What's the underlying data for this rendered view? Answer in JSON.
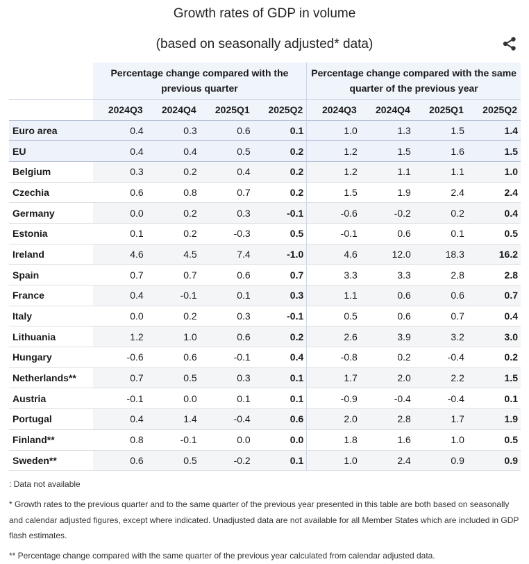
{
  "title": "Growth rates of GDP in volume",
  "subtitle": "(based on seasonally adjusted* data)",
  "icons": {
    "share": "share-icon"
  },
  "table": {
    "group_headers": [
      "Percentage change compared with the previous quarter",
      "Percentage change compared with the same quarter of the previous year"
    ],
    "quarters": [
      "2024Q3",
      "2024Q4",
      "2025Q1",
      "2025Q2",
      "2024Q3",
      "2024Q4",
      "2025Q1",
      "2025Q2"
    ],
    "rows": [
      {
        "country": "Euro area",
        "values": [
          "0.4",
          "0.3",
          "0.6",
          "0.1",
          "1.0",
          "1.3",
          "1.5",
          "1.4"
        ]
      },
      {
        "country": "EU",
        "values": [
          "0.4",
          "0.4",
          "0.5",
          "0.2",
          "1.2",
          "1.5",
          "1.6",
          "1.5"
        ]
      },
      {
        "country": "Belgium",
        "values": [
          "0.3",
          "0.2",
          "0.4",
          "0.2",
          "1.2",
          "1.1",
          "1.1",
          "1.0"
        ]
      },
      {
        "country": "Czechia",
        "values": [
          "0.6",
          "0.8",
          "0.7",
          "0.2",
          "1.5",
          "1.9",
          "2.4",
          "2.4"
        ]
      },
      {
        "country": "Germany",
        "values": [
          "0.0",
          "0.2",
          "0.3",
          "-0.1",
          "-0.6",
          "-0.2",
          "0.2",
          "0.4"
        ]
      },
      {
        "country": "Estonia",
        "values": [
          "0.1",
          "0.2",
          "-0.3",
          "0.5",
          "-0.1",
          "0.6",
          "0.1",
          "0.5"
        ]
      },
      {
        "country": "Ireland",
        "values": [
          "4.6",
          "4.5",
          "7.4",
          "-1.0",
          "4.6",
          "12.0",
          "18.3",
          "16.2"
        ]
      },
      {
        "country": "Spain",
        "values": [
          "0.7",
          "0.7",
          "0.6",
          "0.7",
          "3.3",
          "3.3",
          "2.8",
          "2.8"
        ]
      },
      {
        "country": "France",
        "values": [
          "0.4",
          "-0.1",
          "0.1",
          "0.3",
          "1.1",
          "0.6",
          "0.6",
          "0.7"
        ]
      },
      {
        "country": "Italy",
        "values": [
          "0.0",
          "0.2",
          "0.3",
          "-0.1",
          "0.5",
          "0.6",
          "0.7",
          "0.4"
        ]
      },
      {
        "country": "Lithuania",
        "values": [
          "1.2",
          "1.0",
          "0.6",
          "0.2",
          "2.6",
          "3.9",
          "3.2",
          "3.0"
        ]
      },
      {
        "country": "Hungary",
        "values": [
          "-0.6",
          "0.6",
          "-0.1",
          "0.4",
          "-0.8",
          "0.2",
          "-0.4",
          "0.2"
        ]
      },
      {
        "country": "Netherlands**",
        "values": [
          "0.7",
          "0.5",
          "0.3",
          "0.1",
          "1.7",
          "2.0",
          "2.2",
          "1.5"
        ]
      },
      {
        "country": "Austria",
        "values": [
          "-0.1",
          "0.0",
          "0.1",
          "0.1",
          "-0.9",
          "-0.4",
          "-0.4",
          "0.1"
        ]
      },
      {
        "country": "Portugal",
        "values": [
          "0.4",
          "1.4",
          "-0.4",
          "0.6",
          "2.0",
          "2.8",
          "1.7",
          "1.9"
        ]
      },
      {
        "country": "Finland**",
        "values": [
          "0.8",
          "-0.1",
          "0.0",
          "0.0",
          "1.8",
          "1.6",
          "1.0",
          "0.5"
        ]
      },
      {
        "country": "Sweden**",
        "values": [
          "0.6",
          "0.5",
          "-0.2",
          "0.1",
          "1.0",
          "2.4",
          "0.9",
          "0.9"
        ]
      }
    ]
  },
  "notes": {
    "not_available": ": Data not available",
    "footnote1": "* Growth rates to the previous quarter and to the same quarter of the previous year presented in this table are both based on seasonally and calendar adjusted figures, except where indicated. Unadjusted data are not available for all Member States which are included in GDP flash estimates.",
    "footnote2": "** Percentage change compared with the same quarter of the previous year calculated from calendar adjusted data."
  }
}
